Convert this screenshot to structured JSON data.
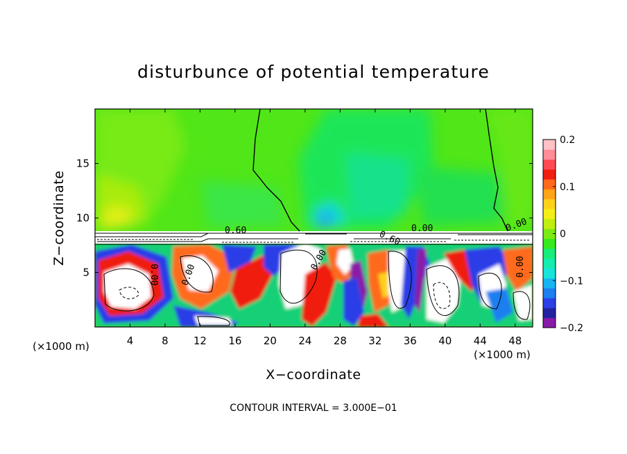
{
  "chart_data": {
    "type": "heatmap",
    "title": "disturbunce of potential temperature",
    "xlabel": "X−coordinate",
    "ylabel": "Z−coordinate",
    "x_unit_label": "(×1000 m)",
    "y_unit_label": "(×1000 m)",
    "xlim": [
      0,
      50
    ],
    "ylim": [
      0,
      20
    ],
    "x_ticks": [
      4,
      8,
      12,
      16,
      20,
      24,
      28,
      32,
      36,
      40,
      44,
      48
    ],
    "x_tick_labels": [
      "4",
      "8",
      "12",
      "16",
      "20",
      "24",
      "28",
      "32",
      "36",
      "40",
      "44",
      "48"
    ],
    "y_ticks": [
      5,
      10,
      15
    ],
    "y_tick_labels": [
      "5",
      "10",
      "15"
    ],
    "colorbar": {
      "min": -0.2,
      "max": 0.2,
      "ticks": [
        0.2,
        0.1,
        0,
        -0.1,
        -0.2
      ],
      "tick_labels": [
        "0.2",
        "0.1",
        "0",
        "−0.1",
        "−0.2"
      ],
      "colors": [
        "#8a1aa8",
        "#2222a0",
        "#2c3ee6",
        "#1e7ff0",
        "#16b4f2",
        "#18e4dc",
        "#15ecb0",
        "#18ec7a",
        "#36ea1c",
        "#7cea12",
        "#c0ee10",
        "#f4ee18",
        "#ffd21a",
        "#ffa418",
        "#ff6a1a",
        "#f01e10",
        "#ff4a54",
        "#ff8c96",
        "#ffc0c6"
      ]
    },
    "contour_labels": [
      "0.60",
      "0.00",
      "0.60",
      "0.00",
      "0.00",
      "0.00",
      "0.00",
      "0.00"
    ],
    "note": "CONTOUR INTERVAL = 3.000E−01"
  }
}
